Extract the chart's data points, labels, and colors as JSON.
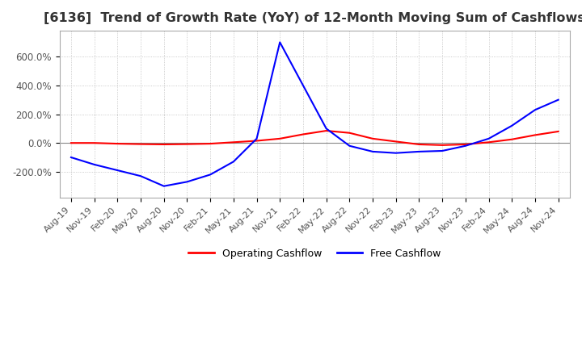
{
  "title": "[6136]  Trend of Growth Rate (YoY) of 12-Month Moving Sum of Cashflows",
  "title_fontsize": 11.5,
  "background_color": "#ffffff",
  "grid_color": "#bbbbbb",
  "legend_labels": [
    "Operating Cashflow",
    "Free Cashflow"
  ],
  "legend_colors": [
    "#ff0000",
    "#0000ff"
  ],
  "ylim": [
    -380,
    780
  ],
  "yticks": [
    -200,
    0,
    200,
    400,
    600
  ],
  "x_labels": [
    "Aug-19",
    "Nov-19",
    "Feb-20",
    "May-20",
    "Aug-20",
    "Nov-20",
    "Feb-21",
    "May-21",
    "Aug-21",
    "Nov-21",
    "Feb-22",
    "May-22",
    "Aug-22",
    "Nov-22",
    "Feb-23",
    "May-23",
    "Aug-23",
    "Nov-23",
    "Feb-24",
    "May-24",
    "Aug-24",
    "Nov-24"
  ],
  "operating_cashflow": [
    0,
    0,
    -5,
    -8,
    -10,
    -8,
    -5,
    5,
    15,
    30,
    60,
    85,
    70,
    30,
    10,
    -10,
    -15,
    -10,
    5,
    25,
    55,
    80
  ],
  "free_cashflow": [
    -100,
    -150,
    -190,
    -230,
    -300,
    -270,
    -220,
    -130,
    30,
    700,
    400,
    100,
    -20,
    -60,
    -70,
    -60,
    -55,
    -20,
    30,
    120,
    230,
    300
  ]
}
